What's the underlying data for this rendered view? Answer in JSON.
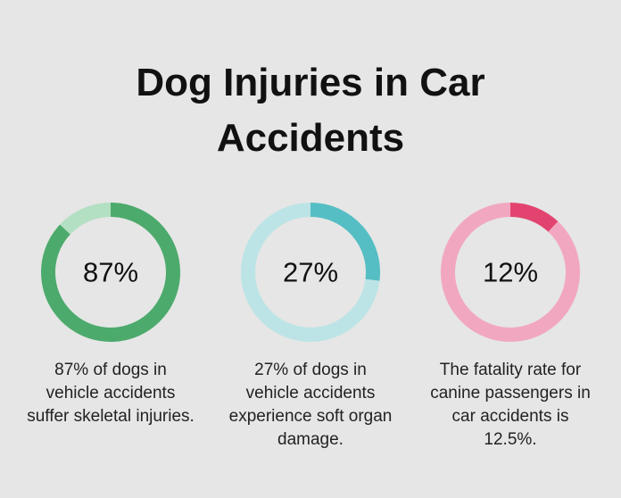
{
  "title": "Dog Injuries in Car Accidents",
  "chart_data": [
    {
      "type": "donut",
      "values": [
        87,
        13
      ],
      "value_labels": [
        "87%",
        null
      ],
      "colors": [
        "#4caa6c",
        "#b3dfc2"
      ],
      "caption": "87% of dogs in vehicle accidents suffer skeletal injuries."
    },
    {
      "type": "donut",
      "values": [
        27,
        73
      ],
      "value_labels": [
        "27%",
        null
      ],
      "colors": [
        "#55bec4",
        "#bce4e6"
      ],
      "caption": "27% of dogs in vehicle accidents experience soft organ damage."
    },
    {
      "type": "donut",
      "values": [
        12,
        88
      ],
      "value_labels": [
        "12%",
        null
      ],
      "colors": [
        "#e2446f",
        "#f2a7c0"
      ],
      "caption": "The fatality rate for canine passengers in car accidents is 12.5%."
    }
  ]
}
